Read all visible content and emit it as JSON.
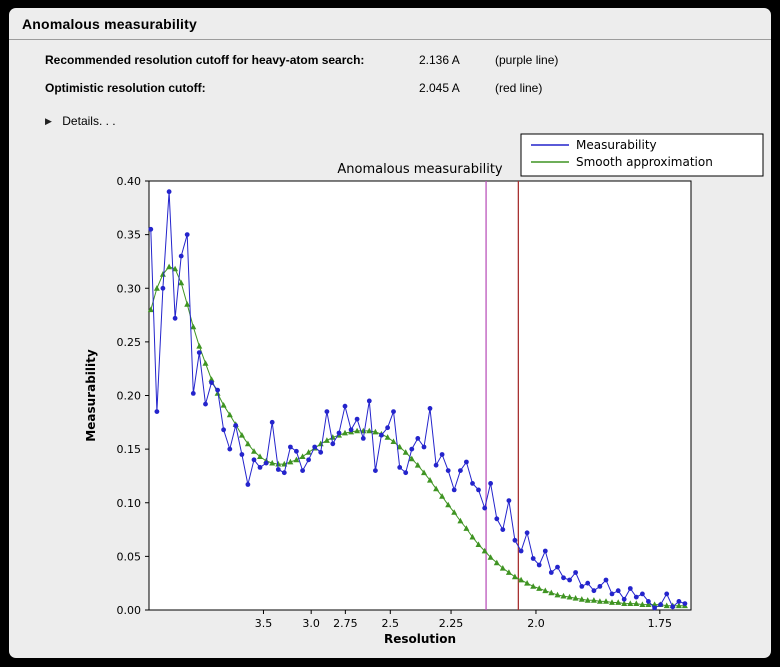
{
  "header": {
    "title": "Anomalous measurability"
  },
  "info": {
    "rows": [
      {
        "label": "Recommended resolution cutoff for heavy-atom search:",
        "value": "2.136 A",
        "note": "(purple line)"
      },
      {
        "label": "Optimistic resolution cutoff:",
        "value": "2.045 A",
        "note": "(red line)"
      }
    ],
    "details_label": "Details. . ."
  },
  "chart_data": {
    "type": "line",
    "title": "Anomalous measurability",
    "xlabel": "Resolution",
    "ylabel": "Measurability",
    "ylim": [
      0.0,
      0.4
    ],
    "yticks": [
      0.0,
      0.05,
      0.1,
      0.15,
      0.2,
      0.25,
      0.3,
      0.35,
      0.4
    ],
    "ytick_labels": [
      "0.00",
      "0.05",
      "0.10",
      "0.15",
      "0.20",
      "0.25",
      "0.30",
      "0.35",
      "0.40"
    ],
    "xticks_resolution": [
      3.5,
      3.0,
      2.75,
      2.5,
      2.25,
      2.0,
      1.75
    ],
    "xtick_labels": [
      "3.5",
      "3.0",
      "2.75",
      "2.5",
      "2.25",
      "2.0",
      "1.75"
    ],
    "x_axis_scale": "linear in 1/d^2, resolution d in Angstrom (axis reversed, high resolution right)",
    "xlim_s": [
      0.0109,
      0.3458
    ],
    "x_s": [
      0.012,
      0.0158,
      0.0195,
      0.0233,
      0.027,
      0.0308,
      0.0345,
      0.0383,
      0.042,
      0.0458,
      0.0495,
      0.0533,
      0.057,
      0.0608,
      0.0645,
      0.0683,
      0.072,
      0.0758,
      0.0795,
      0.0833,
      0.087,
      0.0908,
      0.0945,
      0.0983,
      0.102,
      0.1058,
      0.1095,
      0.1133,
      0.117,
      0.1208,
      0.1245,
      0.1283,
      0.132,
      0.1358,
      0.1395,
      0.1433,
      0.147,
      0.1508,
      0.1545,
      0.1583,
      0.162,
      0.1658,
      0.1695,
      0.1733,
      0.177,
      0.1808,
      0.1845,
      0.1883,
      0.192,
      0.1958,
      0.1995,
      0.2033,
      0.207,
      0.2108,
      0.2145,
      0.2183,
      0.222,
      0.2258,
      0.2295,
      0.2333,
      0.237,
      0.2408,
      0.2445,
      0.2483,
      0.252,
      0.2558,
      0.2595,
      0.2633,
      0.267,
      0.2708,
      0.2745,
      0.2783,
      0.282,
      0.2858,
      0.2895,
      0.2933,
      0.297,
      0.3008,
      0.3045,
      0.3083,
      0.312,
      0.3158,
      0.3195,
      0.3233,
      0.327,
      0.3308,
      0.3345,
      0.3383,
      0.342
    ],
    "series": [
      {
        "name": "Measurability",
        "color": "#2424cc",
        "marker": "circle",
        "values": [
          0.355,
          0.185,
          0.3,
          0.39,
          0.272,
          0.33,
          0.35,
          0.202,
          0.24,
          0.192,
          0.212,
          0.205,
          0.168,
          0.15,
          0.172,
          0.145,
          0.117,
          0.14,
          0.133,
          0.137,
          0.175,
          0.131,
          0.128,
          0.152,
          0.148,
          0.13,
          0.14,
          0.152,
          0.147,
          0.185,
          0.155,
          0.165,
          0.19,
          0.168,
          0.178,
          0.16,
          0.195,
          0.13,
          0.163,
          0.17,
          0.185,
          0.133,
          0.128,
          0.15,
          0.16,
          0.152,
          0.188,
          0.135,
          0.145,
          0.13,
          0.112,
          0.13,
          0.138,
          0.118,
          0.112,
          0.095,
          0.118,
          0.085,
          0.075,
          0.102,
          0.065,
          0.055,
          0.072,
          0.048,
          0.042,
          0.055,
          0.035,
          0.04,
          0.03,
          0.028,
          0.035,
          0.022,
          0.025,
          0.018,
          0.022,
          0.028,
          0.015,
          0.018,
          0.01,
          0.02,
          0.012,
          0.015,
          0.008,
          0.002,
          0.005,
          0.015,
          0.003,
          0.008,
          0.006
        ]
      },
      {
        "name": "Smooth approximation",
        "color": "#3f9422",
        "marker": "triangle",
        "values": [
          0.28,
          0.3,
          0.313,
          0.32,
          0.318,
          0.305,
          0.285,
          0.264,
          0.246,
          0.23,
          0.215,
          0.202,
          0.191,
          0.182,
          0.173,
          0.163,
          0.155,
          0.148,
          0.143,
          0.139,
          0.137,
          0.136,
          0.136,
          0.138,
          0.14,
          0.143,
          0.147,
          0.151,
          0.155,
          0.158,
          0.161,
          0.163,
          0.165,
          0.166,
          0.167,
          0.167,
          0.167,
          0.166,
          0.164,
          0.161,
          0.157,
          0.152,
          0.147,
          0.141,
          0.135,
          0.128,
          0.121,
          0.113,
          0.106,
          0.098,
          0.091,
          0.083,
          0.076,
          0.068,
          0.061,
          0.055,
          0.049,
          0.044,
          0.039,
          0.035,
          0.031,
          0.028,
          0.025,
          0.022,
          0.02,
          0.018,
          0.016,
          0.014,
          0.013,
          0.012,
          0.011,
          0.01,
          0.009,
          0.009,
          0.008,
          0.008,
          0.007,
          0.007,
          0.006,
          0.006,
          0.006,
          0.005,
          0.005,
          0.005,
          0.005,
          0.004,
          0.004,
          0.004,
          0.004
        ]
      }
    ],
    "vlines": [
      {
        "resolution": 2.136,
        "color": "#bb55bb",
        "label": "purple line"
      },
      {
        "resolution": 2.045,
        "color": "#a83232",
        "label": "red line"
      }
    ],
    "legend": {
      "position": "upper right, above plot frame",
      "entries": [
        "Measurability",
        "Smooth approximation"
      ]
    }
  }
}
